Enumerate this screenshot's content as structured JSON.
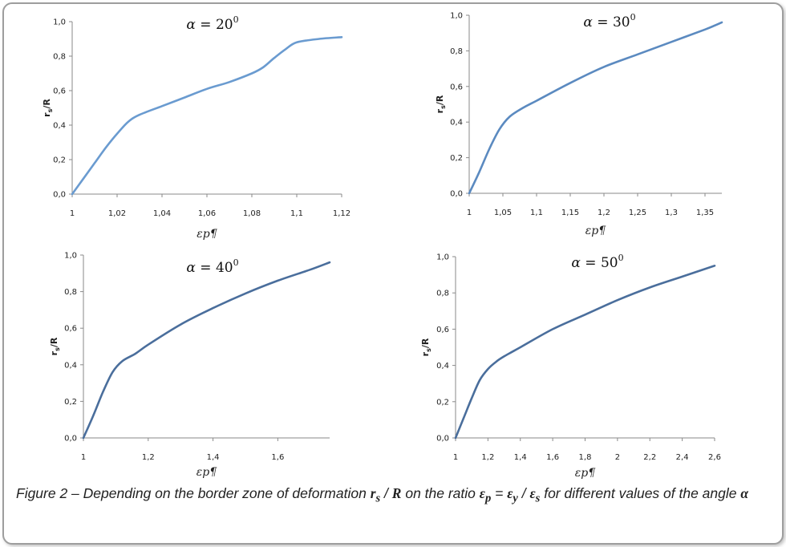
{
  "caption": {
    "prefix": "Figure 2 – Depending on the border zone of deformation ",
    "rs": "r",
    "rs_sub": "s",
    "slash": " / ",
    "R": "R",
    "middle": " on the ratio ",
    "ep": "ε",
    "ep_sub": "p",
    "eq": " = ",
    "ey": "ε",
    "ey_sub": "y",
    "slash2": " / ",
    "es": "ε",
    "es_sub": "s",
    "suffix": " for different values of the angle ",
    "alpha": "α"
  },
  "chart_data": [
    {
      "type": "line",
      "title": "α = 20⁰",
      "title_alpha": "α",
      "title_rest": " = 20",
      "title_sup": "0",
      "ylabel": "rs/R",
      "ylabel_main": "r",
      "ylabel_sub": "s",
      "ylabel_rest": "/R",
      "xlabel": "εp¶",
      "xlim": [
        1,
        1.12
      ],
      "ylim": [
        0,
        1
      ],
      "xticks": [
        1,
        1.02,
        1.04,
        1.06,
        1.08,
        1.1,
        1.12
      ],
      "xtick_labels": [
        "1",
        "1,02",
        "1,04",
        "1,06",
        "1,08",
        "1,1",
        "1,12"
      ],
      "yticks": [
        0,
        0.2,
        0.4,
        0.6,
        0.8,
        1.0
      ],
      "ytick_labels": [
        "0,0",
        "0,2",
        "0,4",
        "0,6",
        "0,8",
        "1,0"
      ],
      "line_color": "#6a9bd0",
      "x": [
        1.0,
        1.005,
        1.01,
        1.015,
        1.02,
        1.025,
        1.03,
        1.04,
        1.05,
        1.06,
        1.07,
        1.08,
        1.085,
        1.09,
        1.095,
        1.1,
        1.11,
        1.12
      ],
      "y": [
        0.0,
        0.09,
        0.18,
        0.27,
        0.35,
        0.42,
        0.46,
        0.51,
        0.56,
        0.61,
        0.65,
        0.7,
        0.735,
        0.79,
        0.84,
        0.88,
        0.9,
        0.91
      ]
    },
    {
      "type": "line",
      "title": "α = 30⁰",
      "title_alpha": "α",
      "title_rest": " = 30",
      "title_sup": "0",
      "ylabel": "rs/R",
      "ylabel_main": "r",
      "ylabel_sub": "s",
      "ylabel_rest": "/R",
      "xlabel": "εp¶",
      "xlim": [
        1,
        1.375
      ],
      "ylim": [
        0,
        1
      ],
      "xticks": [
        1,
        1.05,
        1.1,
        1.15,
        1.2,
        1.25,
        1.3,
        1.35
      ],
      "xtick_labels": [
        "1",
        "1,05",
        "1,1",
        "1,15",
        "1,2",
        "1,25",
        "1,3",
        "1,35"
      ],
      "yticks": [
        0,
        0.2,
        0.4,
        0.6,
        0.8,
        1.0
      ],
      "ytick_labels": [
        "0,0",
        "0,2",
        "0,4",
        "0,6",
        "0,8",
        "1,0"
      ],
      "line_color": "#5b8ac0",
      "x": [
        1.0,
        1.015,
        1.03,
        1.045,
        1.06,
        1.08,
        1.1,
        1.15,
        1.2,
        1.25,
        1.3,
        1.35,
        1.375
      ],
      "y": [
        0.0,
        0.12,
        0.25,
        0.36,
        0.43,
        0.48,
        0.52,
        0.62,
        0.71,
        0.78,
        0.85,
        0.92,
        0.96
      ]
    },
    {
      "type": "line",
      "title": "α = 40⁰",
      "title_alpha": "α",
      "title_rest": " = 40",
      "title_sup": "0",
      "ylabel": "rs/R",
      "ylabel_main": "r",
      "ylabel_sub": "s",
      "ylabel_rest": "/R",
      "xlabel": "εp¶",
      "xlim": [
        1,
        1.76
      ],
      "ylim": [
        0,
        1
      ],
      "xticks": [
        1,
        1.2,
        1.4,
        1.6
      ],
      "xtick_labels": [
        "1",
        "1,2",
        "1,4",
        "1,6"
      ],
      "yticks": [
        0,
        0.2,
        0.4,
        0.6,
        0.8,
        1.0
      ],
      "ytick_labels": [
        "0,0",
        "0,2",
        "0,4",
        "0,6",
        "0,8",
        "1,0"
      ],
      "line_color": "#4a6e9c",
      "x": [
        1.0,
        1.03,
        1.06,
        1.09,
        1.12,
        1.16,
        1.2,
        1.3,
        1.4,
        1.5,
        1.6,
        1.7,
        1.76
      ],
      "y": [
        0.0,
        0.12,
        0.25,
        0.36,
        0.42,
        0.46,
        0.51,
        0.62,
        0.71,
        0.79,
        0.86,
        0.92,
        0.96
      ]
    },
    {
      "type": "line",
      "title": "α = 50⁰",
      "title_alpha": "α",
      "title_rest": " = 50",
      "title_sup": "0",
      "ylabel": "rs/R",
      "ylabel_main": "r",
      "ylabel_sub": "s",
      "ylabel_rest": "/R",
      "xlabel": "εp¶",
      "xlim": [
        1,
        2.6
      ],
      "ylim": [
        0,
        1
      ],
      "xticks": [
        1,
        1.2,
        1.4,
        1.6,
        1.8,
        2,
        2.2,
        2.4,
        2.6
      ],
      "xtick_labels": [
        "1",
        "1,2",
        "1,4",
        "1,6",
        "1,8",
        "2",
        "2,2",
        "2,4",
        "2,6"
      ],
      "yticks": [
        0,
        0.2,
        0.4,
        0.6,
        0.8,
        1.0
      ],
      "ytick_labels": [
        "0,0",
        "0,2",
        "0,4",
        "0,6",
        "0,8",
        "1,0"
      ],
      "line_color": "#4a6e9c",
      "x": [
        1.0,
        1.05,
        1.1,
        1.15,
        1.2,
        1.25,
        1.3,
        1.4,
        1.6,
        1.8,
        2.0,
        2.2,
        2.4,
        2.6
      ],
      "y": [
        0.0,
        0.11,
        0.22,
        0.32,
        0.38,
        0.42,
        0.45,
        0.5,
        0.6,
        0.68,
        0.76,
        0.83,
        0.89,
        0.95
      ]
    }
  ]
}
